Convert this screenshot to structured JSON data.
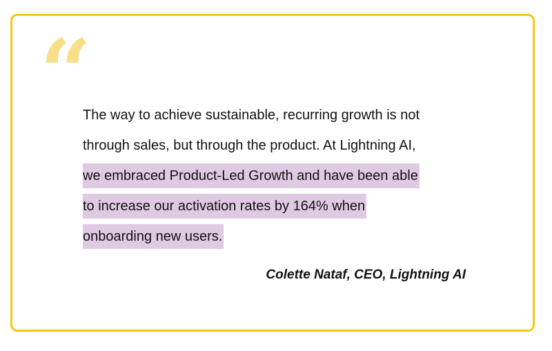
{
  "quote": {
    "mark": "“",
    "lines": [
      {
        "text": "The way to achieve sustainable, recurring growth is not",
        "highlighted": false
      },
      {
        "text": "through sales, but through the product. At Lightning AI,",
        "highlighted": false
      },
      {
        "text": "we embraced Product-Led Growth and have been able",
        "highlighted": true
      },
      {
        "text": "to increase our activation rates by 164% when",
        "highlighted": true
      },
      {
        "text": "onboarding new users.",
        "highlighted": true
      }
    ],
    "attribution": "Colette Nataf, CEO, Lightning AI"
  },
  "colors": {
    "border": "#f2c811",
    "quote_mark": "#f7df8a",
    "highlight": "#e0c9e3",
    "text": "#111111"
  }
}
